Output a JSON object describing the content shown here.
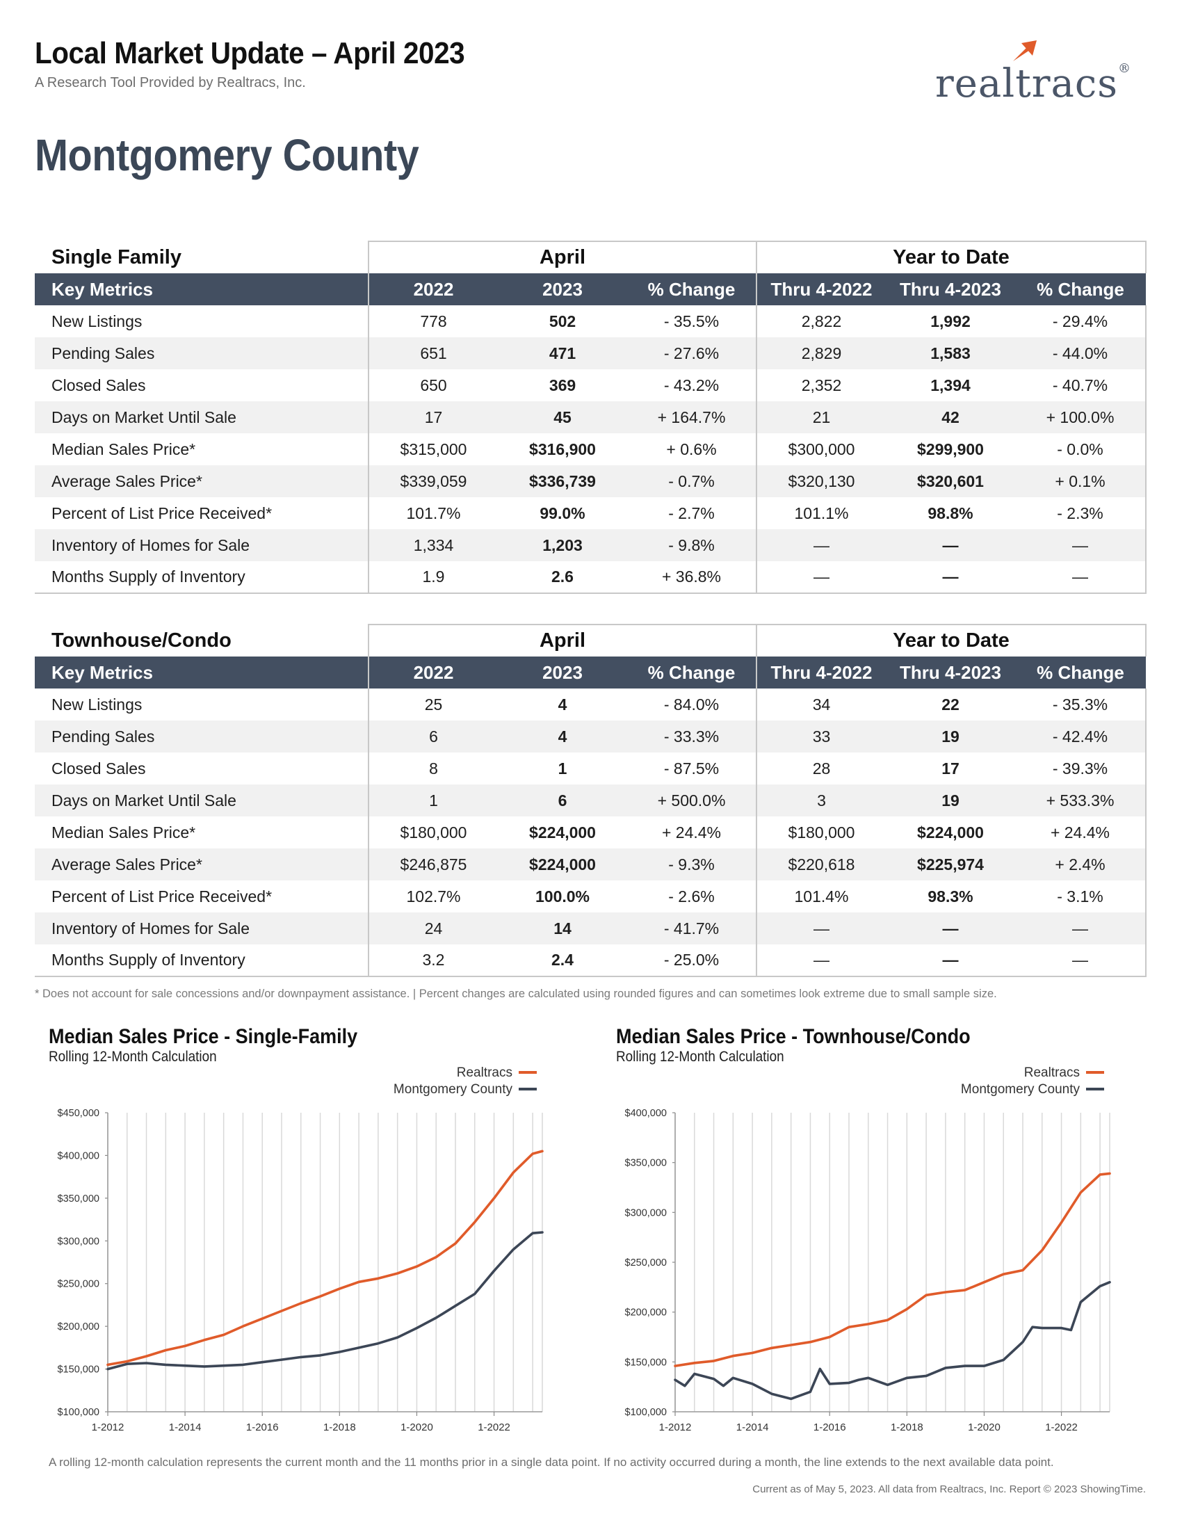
{
  "header": {
    "title": "Local Market Update – April 2023",
    "subtitle": "A Research Tool Provided by Realtracs, Inc.",
    "logo_text": "realtracs",
    "logo_mark": "®",
    "county": "Montgomery County"
  },
  "colors": {
    "accent": "#e05b2a",
    "navy": "#434f61",
    "county_line": "#3c4656"
  },
  "tables": [
    {
      "section": "Single Family",
      "period_label": "April",
      "ytd_label": "Year to Date",
      "columns": [
        "Key Metrics",
        "2022",
        "2023",
        "% Change",
        "Thru 4-2022",
        "Thru 4-2023",
        "% Change"
      ],
      "rows": [
        [
          "New Listings",
          "778",
          "502",
          "- 35.5%",
          "2,822",
          "1,992",
          "- 29.4%"
        ],
        [
          "Pending Sales",
          "651",
          "471",
          "- 27.6%",
          "2,829",
          "1,583",
          "- 44.0%"
        ],
        [
          "Closed Sales",
          "650",
          "369",
          "- 43.2%",
          "2,352",
          "1,394",
          "- 40.7%"
        ],
        [
          "Days on Market Until Sale",
          "17",
          "45",
          "+ 164.7%",
          "21",
          "42",
          "+ 100.0%"
        ],
        [
          "Median Sales Price*",
          "$315,000",
          "$316,900",
          "+ 0.6%",
          "$300,000",
          "$299,900",
          "- 0.0%"
        ],
        [
          "Average Sales Price*",
          "$339,059",
          "$336,739",
          "- 0.7%",
          "$320,130",
          "$320,601",
          "+ 0.1%"
        ],
        [
          "Percent of List Price Received*",
          "101.7%",
          "99.0%",
          "- 2.7%",
          "101.1%",
          "98.8%",
          "- 2.3%"
        ],
        [
          "Inventory of Homes for Sale",
          "1,334",
          "1,203",
          "- 9.8%",
          "—",
          "—",
          "—"
        ],
        [
          "Months Supply of Inventory",
          "1.9",
          "2.6",
          "+ 36.8%",
          "—",
          "—",
          "—"
        ]
      ]
    },
    {
      "section": "Townhouse/Condo",
      "period_label": "April",
      "ytd_label": "Year to Date",
      "columns": [
        "Key Metrics",
        "2022",
        "2023",
        "% Change",
        "Thru 4-2022",
        "Thru 4-2023",
        "% Change"
      ],
      "rows": [
        [
          "New Listings",
          "25",
          "4",
          "- 84.0%",
          "34",
          "22",
          "- 35.3%"
        ],
        [
          "Pending Sales",
          "6",
          "4",
          "- 33.3%",
          "33",
          "19",
          "- 42.4%"
        ],
        [
          "Closed Sales",
          "8",
          "1",
          "- 87.5%",
          "28",
          "17",
          "- 39.3%"
        ],
        [
          "Days on Market Until Sale",
          "1",
          "6",
          "+ 500.0%",
          "3",
          "19",
          "+ 533.3%"
        ],
        [
          "Median Sales Price*",
          "$180,000",
          "$224,000",
          "+ 24.4%",
          "$180,000",
          "$224,000",
          "+ 24.4%"
        ],
        [
          "Average Sales Price*",
          "$246,875",
          "$224,000",
          "- 9.3%",
          "$220,618",
          "$225,974",
          "+ 2.4%"
        ],
        [
          "Percent of List Price Received*",
          "102.7%",
          "100.0%",
          "- 2.6%",
          "101.4%",
          "98.3%",
          "- 3.1%"
        ],
        [
          "Inventory of Homes for Sale",
          "24",
          "14",
          "- 41.7%",
          "—",
          "—",
          "—"
        ],
        [
          "Months Supply of Inventory",
          "3.2",
          "2.4",
          "- 25.0%",
          "—",
          "—",
          "—"
        ]
      ]
    }
  ],
  "footnote": "* Does not account for sale concessions and/or downpayment assistance. | Percent changes are calculated using rounded figures and can sometimes look extreme due to small sample size.",
  "charts_meta": [
    {
      "title": "Median Sales Price - Single-Family",
      "subtitle": "Rolling 12-Month Calculation"
    },
    {
      "title": "Median Sales Price - Townhouse/Condo",
      "subtitle": "Rolling 12-Month Calculation"
    }
  ],
  "chart_data": [
    {
      "type": "line",
      "title": "Median Sales Price - Single-Family",
      "subtitle": "Rolling 12-Month Calculation",
      "ylim": [
        100000,
        450000
      ],
      "yticks": [
        100000,
        150000,
        200000,
        250000,
        300000,
        350000,
        400000,
        450000
      ],
      "ytick_labels": [
        "$100,000",
        "$150,000",
        "$200,000",
        "$250,000",
        "$300,000",
        "$350,000",
        "$400,000",
        "$450,000"
      ],
      "xlim": [
        "2012-01",
        "2023-04"
      ],
      "xtick_labels": [
        "1-2012",
        "1-2014",
        "1-2016",
        "1-2018",
        "1-2020",
        "1-2022"
      ],
      "legend_position": "top-right",
      "grid": true,
      "series": [
        {
          "name": "Realtracs",
          "color": "#e05b2a",
          "points": [
            [
              "2012-01",
              155000
            ],
            [
              "2012-07",
              159000
            ],
            [
              "2013-01",
              165000
            ],
            [
              "2013-07",
              172000
            ],
            [
              "2014-01",
              177000
            ],
            [
              "2014-07",
              184000
            ],
            [
              "2015-01",
              190000
            ],
            [
              "2015-07",
              200000
            ],
            [
              "2016-01",
              209000
            ],
            [
              "2016-07",
              218000
            ],
            [
              "2017-01",
              227000
            ],
            [
              "2017-07",
              235000
            ],
            [
              "2018-01",
              244000
            ],
            [
              "2018-07",
              252000
            ],
            [
              "2019-01",
              256000
            ],
            [
              "2019-07",
              262000
            ],
            [
              "2020-01",
              270000
            ],
            [
              "2020-07",
              281000
            ],
            [
              "2021-01",
              297000
            ],
            [
              "2021-07",
              322000
            ],
            [
              "2022-01",
              350000
            ],
            [
              "2022-07",
              380000
            ],
            [
              "2023-01",
              402000
            ],
            [
              "2023-04",
              405000
            ]
          ]
        },
        {
          "name": "Montgomery County",
          "color": "#3c4656",
          "points": [
            [
              "2012-01",
              150000
            ],
            [
              "2012-07",
              156000
            ],
            [
              "2013-01",
              157000
            ],
            [
              "2013-07",
              155000
            ],
            [
              "2014-01",
              154000
            ],
            [
              "2014-07",
              153000
            ],
            [
              "2015-01",
              154000
            ],
            [
              "2015-07",
              155000
            ],
            [
              "2016-01",
              158000
            ],
            [
              "2016-07",
              161000
            ],
            [
              "2017-01",
              164000
            ],
            [
              "2017-07",
              166000
            ],
            [
              "2018-01",
              170000
            ],
            [
              "2018-07",
              175000
            ],
            [
              "2019-01",
              180000
            ],
            [
              "2019-07",
              187000
            ],
            [
              "2020-01",
              198000
            ],
            [
              "2020-07",
              210000
            ],
            [
              "2021-01",
              224000
            ],
            [
              "2021-07",
              238000
            ],
            [
              "2022-01",
              265000
            ],
            [
              "2022-07",
              290000
            ],
            [
              "2023-01",
              309000
            ],
            [
              "2023-04",
              310000
            ]
          ]
        }
      ]
    },
    {
      "type": "line",
      "title": "Median Sales Price - Townhouse/Condo",
      "subtitle": "Rolling 12-Month Calculation",
      "ylim": [
        100000,
        400000
      ],
      "yticks": [
        100000,
        150000,
        200000,
        250000,
        300000,
        350000,
        400000
      ],
      "ytick_labels": [
        "$100,000",
        "$150,000",
        "$200,000",
        "$250,000",
        "$300,000",
        "$350,000",
        "$400,000"
      ],
      "xlim": [
        "2012-01",
        "2023-04"
      ],
      "xtick_labels": [
        "1-2012",
        "1-2014",
        "1-2016",
        "1-2018",
        "1-2020",
        "1-2022"
      ],
      "legend_position": "top-right",
      "grid": true,
      "series": [
        {
          "name": "Realtracs",
          "color": "#e05b2a",
          "points": [
            [
              "2012-01",
              146000
            ],
            [
              "2012-07",
              149000
            ],
            [
              "2013-01",
              151000
            ],
            [
              "2013-07",
              156000
            ],
            [
              "2014-01",
              159000
            ],
            [
              "2014-07",
              164000
            ],
            [
              "2015-01",
              167000
            ],
            [
              "2015-07",
              170000
            ],
            [
              "2016-01",
              175000
            ],
            [
              "2016-07",
              185000
            ],
            [
              "2017-01",
              188000
            ],
            [
              "2017-07",
              192000
            ],
            [
              "2018-01",
              203000
            ],
            [
              "2018-07",
              217000
            ],
            [
              "2019-01",
              220000
            ],
            [
              "2019-07",
              222000
            ],
            [
              "2020-01",
              230000
            ],
            [
              "2020-07",
              238000
            ],
            [
              "2021-01",
              242000
            ],
            [
              "2021-07",
              262000
            ],
            [
              "2022-01",
              290000
            ],
            [
              "2022-07",
              320000
            ],
            [
              "2023-01",
              338000
            ],
            [
              "2023-04",
              339000
            ]
          ]
        },
        {
          "name": "Montgomery County",
          "color": "#3c4656",
          "points": [
            [
              "2012-01",
              132000
            ],
            [
              "2012-04",
              126000
            ],
            [
              "2012-07",
              138000
            ],
            [
              "2013-01",
              133000
            ],
            [
              "2013-04",
              126000
            ],
            [
              "2013-07",
              134000
            ],
            [
              "2014-01",
              128000
            ],
            [
              "2014-07",
              118000
            ],
            [
              "2015-01",
              113000
            ],
            [
              "2015-07",
              120000
            ],
            [
              "2015-10",
              143000
            ],
            [
              "2016-01",
              128000
            ],
            [
              "2016-07",
              129000
            ],
            [
              "2016-10",
              132000
            ],
            [
              "2017-01",
              134000
            ],
            [
              "2017-07",
              127000
            ],
            [
              "2018-01",
              134000
            ],
            [
              "2018-07",
              136000
            ],
            [
              "2019-01",
              144000
            ],
            [
              "2019-07",
              146000
            ],
            [
              "2020-01",
              146000
            ],
            [
              "2020-07",
              152000
            ],
            [
              "2021-01",
              170000
            ],
            [
              "2021-04",
              185000
            ],
            [
              "2021-07",
              184000
            ],
            [
              "2022-01",
              184000
            ],
            [
              "2022-04",
              182000
            ],
            [
              "2022-07",
              210000
            ],
            [
              "2023-01",
              226000
            ],
            [
              "2023-04",
              230000
            ]
          ]
        }
      ]
    }
  ],
  "bottom_note": "A rolling 12-month calculation represents the current month and the 11 months prior in a single data point. If no activity occurred during a month, the line extends to the next available data point.",
  "copyright": "Current as of May 5, 2023. All data from Realtracs, Inc. Report © 2023 ShowingTime."
}
